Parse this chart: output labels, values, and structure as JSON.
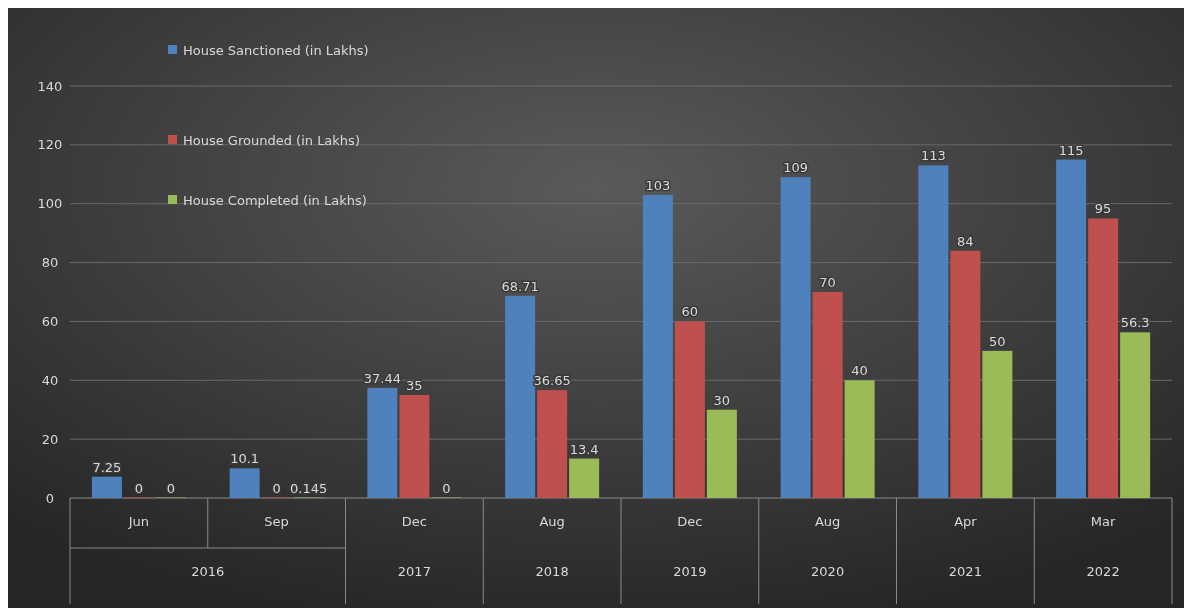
{
  "chart_data": {
    "type": "bar",
    "categories": [
      "Jun",
      "Sep",
      "Dec",
      "Aug",
      "Dec",
      "Aug",
      "Apr",
      "Mar"
    ],
    "annotations": [
      "2016",
      "2017",
      "2018",
      "2019",
      "2020",
      "2021",
      "2022"
    ],
    "series": [
      {
        "name": "House Sanctioned (in Lakhs)",
        "color": "#4f81bd",
        "values": [
          7.25,
          10.1,
          37.44,
          68.71,
          103,
          109,
          113,
          115
        ]
      },
      {
        "name": "House Grounded (in Lakhs)",
        "color": "#c0504d",
        "values": [
          0,
          0,
          35,
          36.65,
          60,
          70,
          84,
          95
        ]
      },
      {
        "name": "House Completed (in Lakhs)",
        "color": "#9bbb59",
        "values": [
          0,
          0.145,
          0,
          13.4,
          30,
          40,
          50,
          56.3
        ]
      }
    ],
    "ylim": [
      0,
      140
    ],
    "yticks": [
      0,
      20,
      40,
      60,
      80,
      100,
      120,
      140
    ],
    "grid": "y",
    "legend": "top left",
    "data_labels": true
  }
}
